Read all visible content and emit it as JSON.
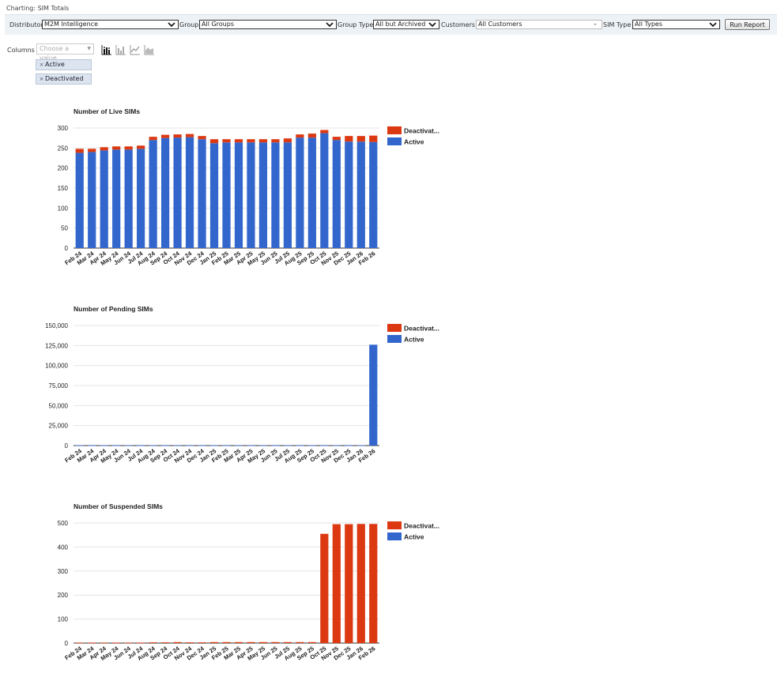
{
  "page": {
    "title": "Charting: SIM Totals"
  },
  "filters": {
    "distributor_label": "Distributor",
    "distributor_value": "M2M Intelligence",
    "group_label": "Group",
    "group_value": "All Groups",
    "group_type_label": "Group Type",
    "group_type_value": "All but Archived",
    "customers_label": "Customers",
    "customers_value": "All Customers",
    "sim_type_label": "SIM Type",
    "sim_type_value": "All Types",
    "run_button": "Run Report"
  },
  "columns": {
    "label": "Columns",
    "placeholder": "Choose a value...",
    "selected": [
      "Active",
      "Deactivated"
    ],
    "chart_types": [
      "stacked-bar-icon",
      "bar-icon",
      "line-icon",
      "area-icon"
    ]
  },
  "colors": {
    "active": "#3366cc",
    "deactivated": "#dc3912",
    "grid": "#e4e4e4",
    "selected_chip": "#dbe4ef"
  },
  "chart_data": [
    {
      "type": "bar",
      "stacked": true,
      "title": "Number of Live SIMs",
      "categories": [
        "Feb 24",
        "Mar 24",
        "Apr 24",
        "May 24",
        "Jun 24",
        "Jul 24",
        "Aug 24",
        "Sep 24",
        "Oct 24",
        "Nov 24",
        "Dec 24",
        "Jan 25",
        "Feb 25",
        "Mar 25",
        "Apr 25",
        "May 25",
        "Jun 25",
        "Jul 25",
        "Aug 25",
        "Sep 25",
        "Oct 25",
        "Nov 25",
        "Dec 25",
        "Jan 26",
        "Feb 26"
      ],
      "series": [
        {
          "name": "Deactivat...",
          "values": [
            10,
            8,
            8,
            8,
            8,
            8,
            8,
            8,
            8,
            8,
            8,
            10,
            8,
            8,
            8,
            8,
            8,
            10,
            8,
            10,
            8,
            8,
            14,
            14,
            16
          ]
        },
        {
          "name": "Active",
          "values": [
            238,
            240,
            244,
            246,
            246,
            248,
            270,
            275,
            276,
            277,
            272,
            262,
            264,
            264,
            264,
            264,
            264,
            264,
            276,
            276,
            287,
            270,
            266,
            266,
            265
          ]
        }
      ],
      "series_colors": [
        "#dc3912",
        "#3366cc"
      ],
      "ylim": [
        0,
        300
      ],
      "yticks": [
        "0",
        "50",
        "100",
        "150",
        "200",
        "250",
        "300"
      ],
      "ytick_values": [
        0,
        50,
        100,
        150,
        200,
        250,
        300
      ],
      "legend": "right",
      "grid": true
    },
    {
      "type": "bar",
      "stacked": true,
      "title": "Number of Pending SIMs",
      "categories": [
        "Feb 24",
        "Mar 24",
        "Apr 24",
        "May 24",
        "Jun 24",
        "Jul 24",
        "Aug 24",
        "Sep 24",
        "Oct 24",
        "Nov 24",
        "Dec 24",
        "Jan 25",
        "Feb 25",
        "Mar 25",
        "Apr 25",
        "May 25",
        "Jun 25",
        "Jul 25",
        "Aug 25",
        "Sep 25",
        "Oct 25",
        "Nov 25",
        "Dec 25",
        "Jan 26",
        "Feb 26"
      ],
      "series": [
        {
          "name": "Deactivat...",
          "values": [
            0,
            0,
            0,
            0,
            0,
            0,
            0,
            0,
            0,
            0,
            0,
            0,
            0,
            0,
            0,
            0,
            0,
            0,
            0,
            0,
            0,
            0,
            0,
            0,
            0
          ]
        },
        {
          "name": "Active",
          "values": [
            300,
            300,
            300,
            300,
            300,
            300,
            300,
            300,
            300,
            300,
            300,
            300,
            300,
            300,
            300,
            300,
            300,
            300,
            300,
            300,
            300,
            300,
            300,
            300,
            126000
          ]
        }
      ],
      "series_colors": [
        "#dc3912",
        "#3366cc"
      ],
      "ylim": [
        0,
        150000
      ],
      "yticks": [
        "0",
        "25,000",
        "50,000",
        "75,000",
        "100,000",
        "125,000",
        "150,000"
      ],
      "ytick_values": [
        0,
        25000,
        50000,
        75000,
        100000,
        125000,
        150000
      ],
      "legend": "right",
      "grid": true
    },
    {
      "type": "bar",
      "stacked": true,
      "title": "Number of Suspended SIMs",
      "categories": [
        "Feb 24",
        "Mar 24",
        "Apr 24",
        "May 24",
        "Jun 24",
        "Jul 24",
        "Aug 24",
        "Sep 24",
        "Oct 24",
        "Nov 24",
        "Dec 24",
        "Jan 25",
        "Feb 25",
        "Mar 25",
        "Apr 25",
        "May 25",
        "Jun 25",
        "Jul 25",
        "Aug 25",
        "Sep 25",
        "Oct 25",
        "Nov 25",
        "Dec 25",
        "Jan 26",
        "Feb 26"
      ],
      "series": [
        {
          "name": "Deactivat...",
          "values": [
            2,
            2,
            2,
            2,
            2,
            2,
            3,
            3,
            4,
            3,
            3,
            4,
            4,
            4,
            4,
            4,
            4,
            4,
            4,
            4,
            455,
            495,
            495,
            496,
            496
          ]
        },
        {
          "name": "Active",
          "values": [
            0,
            0,
            0,
            0,
            0,
            0,
            0,
            0,
            0,
            0,
            0,
            0,
            0,
            0,
            0,
            0,
            0,
            0,
            0,
            0,
            0,
            0,
            0,
            0,
            0
          ]
        }
      ],
      "series_colors": [
        "#dc3912",
        "#3366cc"
      ],
      "ylim": [
        0,
        500
      ],
      "yticks": [
        "0",
        "100",
        "200",
        "300",
        "400",
        "500"
      ],
      "ytick_values": [
        0,
        100,
        200,
        300,
        400,
        500
      ],
      "legend": "right",
      "grid": true
    }
  ]
}
